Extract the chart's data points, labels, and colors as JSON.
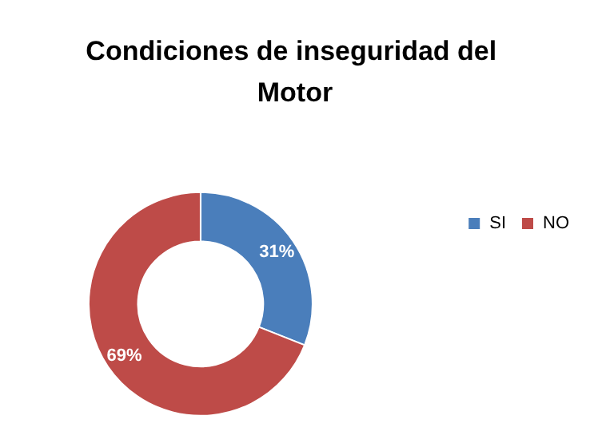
{
  "chart_data": {
    "type": "donut",
    "title": "Condiciones de inseguridad del Motor",
    "categories": [
      "SI",
      "NO"
    ],
    "values": [
      31,
      69
    ],
    "colors": [
      "#4a7ebb",
      "#be4b48"
    ],
    "value_labels": [
      "31%",
      "69%"
    ],
    "legend": "right"
  }
}
